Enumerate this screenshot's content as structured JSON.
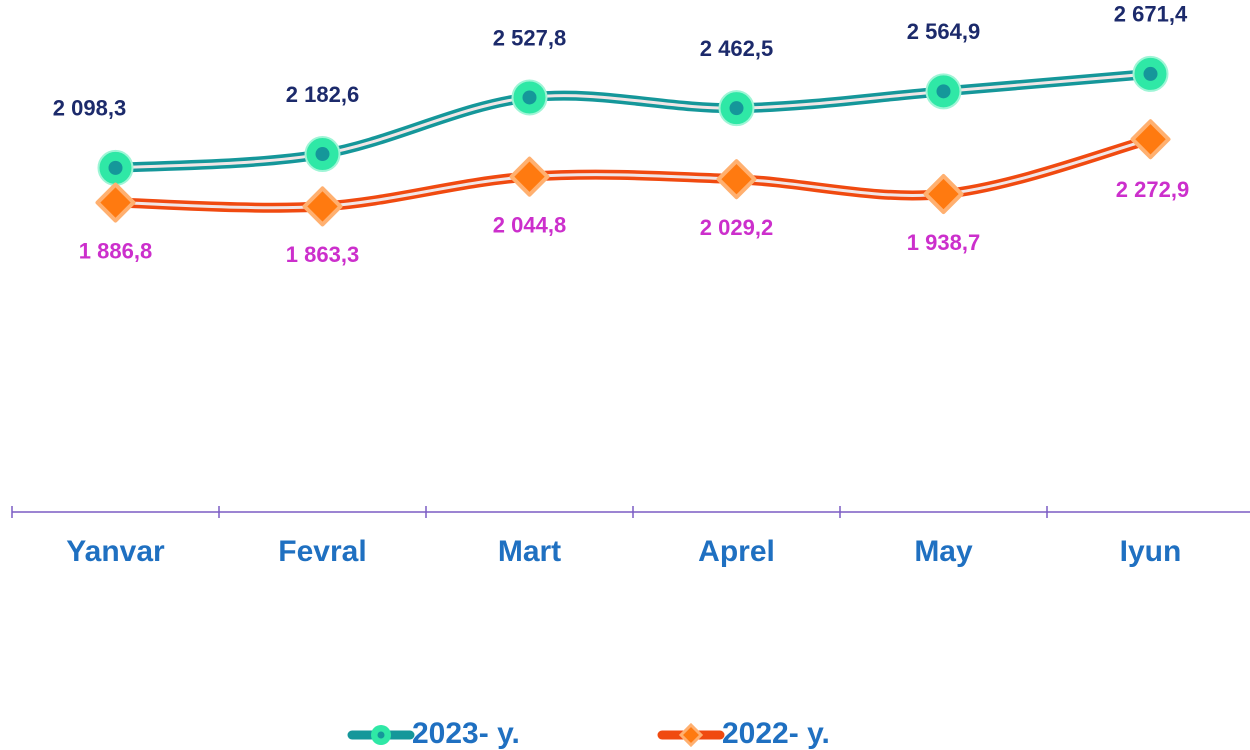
{
  "chart_data": {
    "type": "line",
    "categories": [
      "Yanvar",
      "Fevral",
      "Mart",
      "Aprel",
      "May",
      "Iyun"
    ],
    "series": [
      {
        "name": "2023- y.",
        "color": "#15979a",
        "marker_color": "#2fe8a6",
        "label_color": "#1c2a6b",
        "values": [
          2098.3,
          2182.6,
          2527.8,
          2462.5,
          2564.9,
          2671.4
        ],
        "value_labels": [
          "2 098,3",
          "2 182,6",
          "2 527,8",
          "2 462,5",
          "2 564,9",
          "2 671,4"
        ]
      },
      {
        "name": "2022- y.",
        "color": "#f04a10",
        "marker_color": "#ff7a10",
        "label_color": "#cc2fcc",
        "values": [
          1886.8,
          1863.3,
          2044.8,
          2029.2,
          1938.7,
          2272.9
        ],
        "value_labels": [
          "1 886,8",
          "1 863,3",
          "2 044,8",
          "2 029,2",
          "1 938,7",
          "2 272,9"
        ]
      }
    ],
    "ylim": [
      0,
      3000
    ],
    "legend": "bottom"
  }
}
